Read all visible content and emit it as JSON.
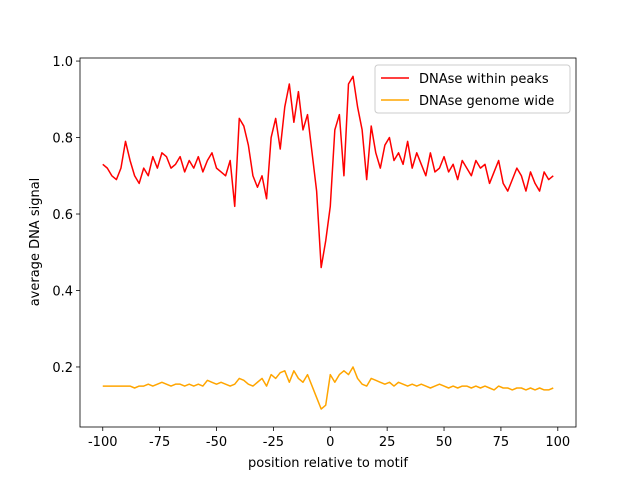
{
  "chart_data": {
    "type": "line",
    "xlabel": "position relative to motif",
    "ylabel": "average DNA signal",
    "x": [
      -100,
      -98,
      -96,
      -94,
      -92,
      -90,
      -88,
      -86,
      -84,
      -82,
      -80,
      -78,
      -76,
      -74,
      -72,
      -70,
      -68,
      -66,
      -64,
      -62,
      -60,
      -58,
      -56,
      -54,
      -52,
      -50,
      -48,
      -46,
      -44,
      -42,
      -40,
      -38,
      -36,
      -34,
      -32,
      -30,
      -28,
      -26,
      -24,
      -22,
      -20,
      -18,
      -16,
      -14,
      -12,
      -10,
      -8,
      -6,
      -4,
      -2,
      0,
      2,
      4,
      6,
      8,
      10,
      12,
      14,
      16,
      18,
      20,
      22,
      24,
      26,
      28,
      30,
      32,
      34,
      36,
      38,
      40,
      42,
      44,
      46,
      48,
      50,
      52,
      54,
      56,
      58,
      60,
      62,
      64,
      66,
      68,
      70,
      72,
      74,
      76,
      78,
      80,
      82,
      84,
      86,
      88,
      90,
      92,
      94,
      96,
      98
    ],
    "series": [
      {
        "name": "DNAse within peaks",
        "color": "#ff0000",
        "values": [
          0.73,
          0.72,
          0.7,
          0.69,
          0.72,
          0.79,
          0.74,
          0.7,
          0.68,
          0.72,
          0.7,
          0.75,
          0.72,
          0.76,
          0.75,
          0.72,
          0.73,
          0.75,
          0.71,
          0.74,
          0.72,
          0.75,
          0.71,
          0.74,
          0.76,
          0.72,
          0.71,
          0.7,
          0.74,
          0.62,
          0.85,
          0.83,
          0.78,
          0.7,
          0.67,
          0.7,
          0.64,
          0.8,
          0.85,
          0.77,
          0.88,
          0.94,
          0.84,
          0.92,
          0.82,
          0.86,
          0.76,
          0.66,
          0.46,
          0.53,
          0.62,
          0.82,
          0.86,
          0.7,
          0.94,
          0.96,
          0.88,
          0.82,
          0.69,
          0.83,
          0.76,
          0.72,
          0.78,
          0.8,
          0.74,
          0.76,
          0.73,
          0.79,
          0.72,
          0.76,
          0.73,
          0.7,
          0.76,
          0.71,
          0.72,
          0.75,
          0.71,
          0.73,
          0.69,
          0.74,
          0.72,
          0.7,
          0.74,
          0.72,
          0.73,
          0.68,
          0.71,
          0.74,
          0.68,
          0.66,
          0.69,
          0.72,
          0.7,
          0.66,
          0.71,
          0.68,
          0.66,
          0.71,
          0.69,
          0.7
        ]
      },
      {
        "name": "DNAse genome wide",
        "color": "#ffa500",
        "values": [
          0.15,
          0.15,
          0.15,
          0.15,
          0.15,
          0.15,
          0.15,
          0.145,
          0.15,
          0.15,
          0.155,
          0.15,
          0.155,
          0.16,
          0.155,
          0.15,
          0.155,
          0.155,
          0.15,
          0.155,
          0.15,
          0.155,
          0.15,
          0.165,
          0.16,
          0.155,
          0.16,
          0.155,
          0.15,
          0.155,
          0.17,
          0.165,
          0.155,
          0.15,
          0.16,
          0.17,
          0.15,
          0.18,
          0.17,
          0.185,
          0.19,
          0.16,
          0.19,
          0.17,
          0.16,
          0.18,
          0.15,
          0.12,
          0.09,
          0.1,
          0.18,
          0.16,
          0.18,
          0.19,
          0.18,
          0.2,
          0.17,
          0.155,
          0.15,
          0.17,
          0.165,
          0.16,
          0.155,
          0.16,
          0.15,
          0.16,
          0.155,
          0.15,
          0.155,
          0.15,
          0.155,
          0.15,
          0.145,
          0.15,
          0.155,
          0.15,
          0.145,
          0.15,
          0.145,
          0.15,
          0.15,
          0.145,
          0.15,
          0.145,
          0.15,
          0.145,
          0.14,
          0.15,
          0.145,
          0.145,
          0.14,
          0.145,
          0.145,
          0.14,
          0.145,
          0.14,
          0.145,
          0.14,
          0.14,
          0.145
        ]
      }
    ],
    "xlim": [
      -110,
      108
    ],
    "xticks": [
      -100,
      -75,
      -50,
      -25,
      0,
      25,
      50,
      75,
      100
    ],
    "ylim": [
      0.043,
      1.008
    ],
    "yticks": [
      0.2,
      0.4,
      0.6,
      0.8,
      {
        "value": 1.0,
        "label": "1.0"
      }
    ],
    "legend": "upper right",
    "grid": false
  }
}
